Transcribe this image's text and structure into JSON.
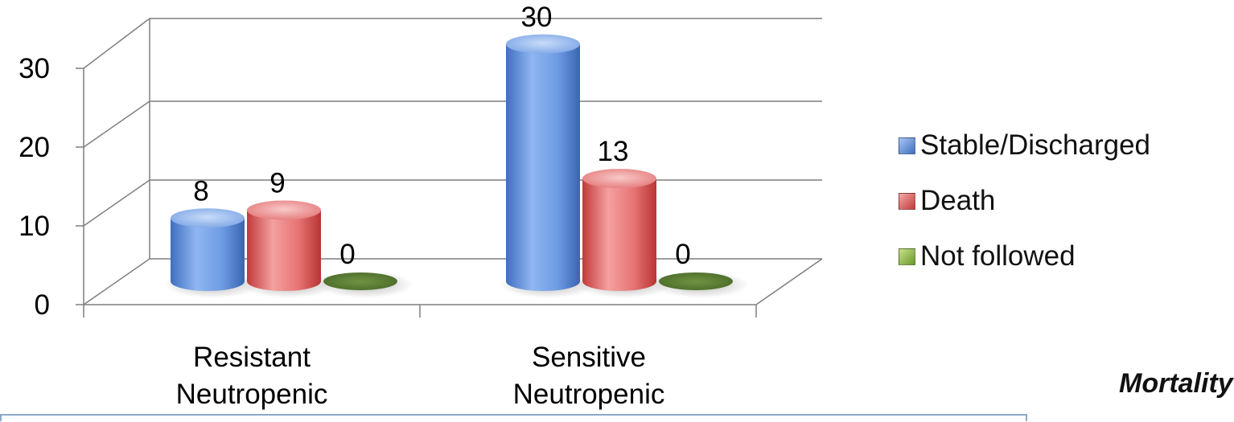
{
  "chart_data": {
    "type": "bar",
    "subtype": "3d-cylinder-clustered",
    "title": "",
    "xlabel": "",
    "ylabel": "",
    "categories": [
      [
        "Resistant",
        "Neutropenic"
      ],
      [
        "Sensitive",
        "Neutropenic"
      ]
    ],
    "series": [
      {
        "name": "Stable/Discharged",
        "values": [
          8,
          30
        ],
        "color": "#5b8ed6"
      },
      {
        "name": "Death",
        "values": [
          9,
          13
        ],
        "color": "#e25a5a"
      },
      {
        "name": "Not followed",
        "values": [
          0,
          0
        ],
        "color": "#6a8a3a"
      }
    ],
    "ylim": [
      0,
      30
    ],
    "yticks": [
      "0",
      "10",
      "20",
      "30"
    ],
    "grid": true,
    "legend_position": "right"
  },
  "caption": "Mortality"
}
